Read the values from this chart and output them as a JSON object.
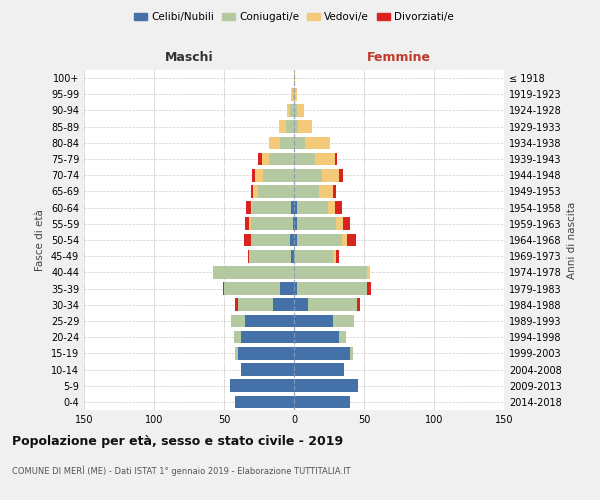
{
  "age_groups": [
    "0-4",
    "5-9",
    "10-14",
    "15-19",
    "20-24",
    "25-29",
    "30-34",
    "35-39",
    "40-44",
    "45-49",
    "50-54",
    "55-59",
    "60-64",
    "65-69",
    "70-74",
    "75-79",
    "80-84",
    "85-89",
    "90-94",
    "95-99",
    "100+"
  ],
  "birth_years": [
    "2014-2018",
    "2009-2013",
    "2004-2008",
    "1999-2003",
    "1994-1998",
    "1989-1993",
    "1984-1988",
    "1979-1983",
    "1974-1978",
    "1969-1973",
    "1964-1968",
    "1959-1963",
    "1954-1958",
    "1949-1953",
    "1944-1948",
    "1939-1943",
    "1934-1938",
    "1929-1933",
    "1924-1928",
    "1919-1923",
    "≤ 1918"
  ],
  "male": {
    "celibi": [
      42,
      46,
      38,
      40,
      38,
      35,
      15,
      10,
      0,
      2,
      3,
      1,
      2,
      0,
      0,
      0,
      0,
      0,
      0,
      0,
      0
    ],
    "coniugati": [
      0,
      0,
      0,
      2,
      5,
      10,
      25,
      40,
      58,
      30,
      28,
      30,
      28,
      26,
      22,
      18,
      10,
      6,
      3,
      1,
      0
    ],
    "vedovi": [
      0,
      0,
      0,
      0,
      0,
      0,
      0,
      0,
      0,
      0,
      0,
      1,
      1,
      3,
      6,
      5,
      8,
      5,
      2,
      1,
      0
    ],
    "divorziati": [
      0,
      0,
      0,
      0,
      0,
      0,
      2,
      1,
      0,
      1,
      5,
      3,
      3,
      2,
      2,
      3,
      0,
      0,
      0,
      0,
      0
    ]
  },
  "female": {
    "nubili": [
      40,
      46,
      36,
      40,
      32,
      28,
      10,
      2,
      0,
      0,
      2,
      2,
      2,
      0,
      0,
      0,
      0,
      0,
      0,
      0,
      0
    ],
    "coniugate": [
      0,
      0,
      0,
      2,
      5,
      15,
      35,
      50,
      52,
      28,
      32,
      28,
      22,
      18,
      20,
      15,
      8,
      3,
      2,
      0,
      0
    ],
    "vedove": [
      0,
      0,
      0,
      0,
      0,
      0,
      0,
      0,
      2,
      2,
      4,
      5,
      5,
      10,
      12,
      14,
      18,
      10,
      5,
      2,
      1
    ],
    "divorziate": [
      0,
      0,
      0,
      0,
      0,
      0,
      2,
      3,
      0,
      2,
      6,
      5,
      5,
      2,
      3,
      2,
      0,
      0,
      0,
      0,
      0
    ]
  },
  "colors": {
    "celibi": "#4472a8",
    "coniugati": "#b5c9a0",
    "vedovi": "#f5c97a",
    "divorziati": "#d9231e"
  },
  "xlim": 150,
  "xticks": [
    -150,
    -100,
    -50,
    0,
    50,
    100,
    150
  ],
  "title": "Popolazione per età, sesso e stato civile - 2019",
  "subtitle": "COMUNE DI MERÌ (ME) - Dati ISTAT 1° gennaio 2019 - Elaborazione TUTTITALIA.IT",
  "ylabel_left": "Fasce di età",
  "ylabel_right": "Anni di nascita",
  "xlabel_left": "Maschi",
  "xlabel_right": "Femmine",
  "legend_labels": [
    "Celibi/Nubili",
    "Coniugati/e",
    "Vedovi/e",
    "Divorziati/e"
  ],
  "bg_color": "#f0f0f0",
  "plot_bg": "#ffffff",
  "grid_color": "#cccccc"
}
